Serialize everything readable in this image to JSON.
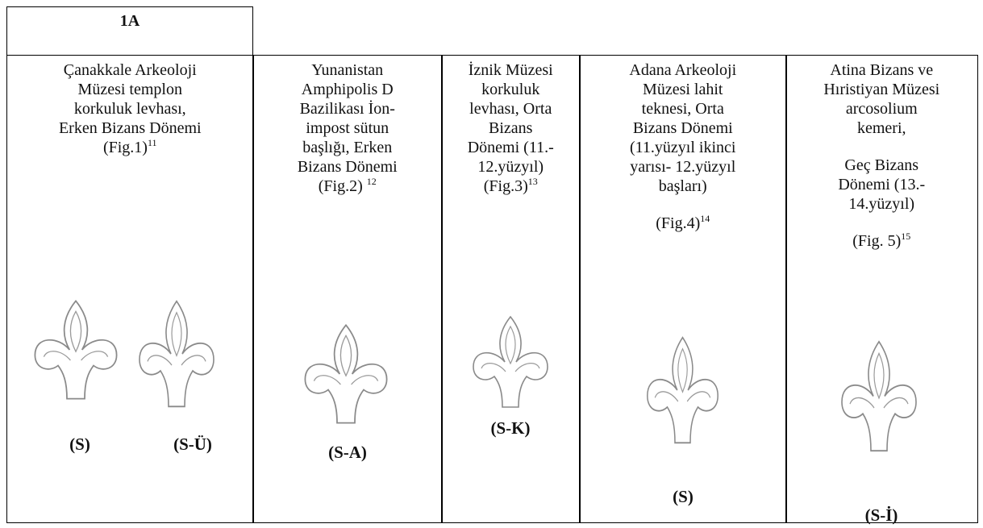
{
  "table": {
    "header": "1A",
    "columns": [
      {
        "paragraphs": [
          [
            "Çanakkale Arkeoloji",
            "Müzesi templon",
            "korkuluk levhası,",
            "Erken Bizans Dönemi",
            {
              "text": "(Fig.1)",
              "sup": "11"
            }
          ]
        ],
        "labels": [
          "(S)",
          "(S-Ü)"
        ]
      },
      {
        "paragraphs": [
          [
            "Yunanistan",
            "Amphipolis D",
            "Bazilikası İon-",
            "impost sütun",
            "başlığı, Erken",
            "Bizans Dönemi",
            {
              "text": "(Fig.2) ",
              "sup": "12"
            }
          ]
        ],
        "labels": [
          "(S-A)"
        ]
      },
      {
        "paragraphs": [
          [
            "İznik Müzesi",
            "korkuluk",
            "levhası, Orta",
            "Bizans",
            "Dönemi (11.-",
            "12.yüzyıl)",
            {
              "text": "(Fig.3)",
              "sup": "13"
            }
          ]
        ],
        "labels": [
          "(S-K)"
        ]
      },
      {
        "paragraphs": [
          [
            "Adana Arkeoloji",
            "Müzesi lahit",
            "teknesi, Orta",
            "Bizans Dönemi",
            "(11.yüzyıl ikinci",
            "yarısı- 12.yüzyıl",
            "başları)"
          ],
          [
            {
              "text": "(Fig.4)",
              "sup": "14"
            }
          ]
        ],
        "labels": [
          "(S)"
        ]
      },
      {
        "paragraphs": [
          [
            "Atina Bizans ve",
            "Hıristiyan Müzesi",
            "arcosolium",
            "kemeri,"
          ],
          [
            "Geç Bizans",
            "Dönemi (13.-",
            "14.yüzyıl)"
          ],
          [
            {
              "text": "(Fig. 5)",
              "sup": "15"
            }
          ]
        ],
        "labels": [
          "(S-İ)"
        ]
      }
    ]
  }
}
